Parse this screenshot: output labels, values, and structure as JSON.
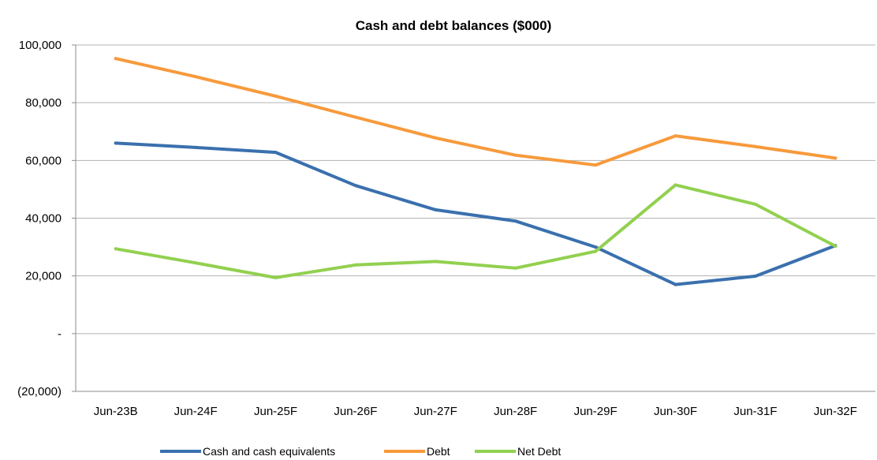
{
  "chart_data": {
    "type": "line",
    "title": "Cash and debt balances ($000)",
    "xlabel": "",
    "ylabel": "",
    "categories": [
      "Jun-23B",
      "Jun-24F",
      "Jun-25F",
      "Jun-26F",
      "Jun-27F",
      "Jun-28F",
      "Jun-29F",
      "Jun-30F",
      "Jun-31F",
      "Jun-32F"
    ],
    "ylim": [
      -20000,
      100000
    ],
    "yticks": [
      100000,
      80000,
      60000,
      40000,
      20000,
      0,
      -20000
    ],
    "ytick_labels": [
      "100,000",
      "80,000",
      "60,000",
      "40,000",
      "20,000",
      "-",
      "(20,000)"
    ],
    "grid": true,
    "legend_position": "bottom",
    "series": [
      {
        "name": "Cash and cash equivalents",
        "color": "#3a70ae",
        "values": [
          66000,
          64500,
          62800,
          51300,
          42900,
          39000,
          30000,
          17000,
          19900,
          30500
        ]
      },
      {
        "name": "Debt",
        "color": "#f79a3c",
        "values": [
          95300,
          89000,
          82300,
          75000,
          67800,
          61800,
          58400,
          68500,
          64800,
          60800
        ]
      },
      {
        "name": "Net Debt",
        "color": "#92d050",
        "values": [
          29400,
          24500,
          19400,
          23800,
          25000,
          22700,
          28500,
          51500,
          44800,
          30300
        ]
      }
    ]
  }
}
